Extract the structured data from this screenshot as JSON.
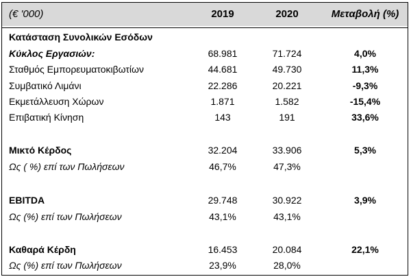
{
  "header": {
    "unit": "(€ '000)",
    "year1": "2019",
    "year2": "2020",
    "change": "Μεταβολή (%)"
  },
  "rows": [
    {
      "label": "Κατάσταση Συνολικών Εσόδων",
      "y1": "",
      "y2": "",
      "change": ""
    },
    {
      "label": "Κύκλος Εργασιών:",
      "y1": "68.981",
      "y2": "71.724",
      "change": "4,0%"
    },
    {
      "label": "Σταθμός Εμπορευματοκιβωτίων",
      "y1": "44.681",
      "y2": "49.730",
      "change": "11,3%"
    },
    {
      "label": "Συμβατικό Λιμάνι",
      "y1": "22.286",
      "y2": "20.221",
      "change": "-9,3%"
    },
    {
      "label": "Εκμετάλλευση Χώρων",
      "y1": "1.871",
      "y2": "1.582",
      "change": "-15,4%"
    },
    {
      "label": "Επιβατική Κίνηση",
      "y1": "143",
      "y2": "191",
      "change": "33,6%"
    },
    {
      "label": "Μικτό Κέρδος",
      "y1": "32.204",
      "y2": "33.906",
      "change": "5,3%"
    },
    {
      "label": "Ως ( %) επί των Πωλήσεων",
      "y1": "46,7%",
      "y2": "47,3%",
      "change": ""
    },
    {
      "label": "EBITDA",
      "y1": "29.748",
      "y2": "30.922",
      "change": "3,9%"
    },
    {
      "label": "Ως (%) επί των Πωλήσεων",
      "y1": "43,1%",
      "y2": "43,1%",
      "change": ""
    },
    {
      "label": "Καθαρά Κέρδη",
      "y1": "16.453",
      "y2": "20.084",
      "change": "22,1%"
    },
    {
      "label": "Ως (%) επί των Πωλήσεων",
      "y1": "23,9%",
      "y2": "28,0%",
      "change": ""
    }
  ]
}
